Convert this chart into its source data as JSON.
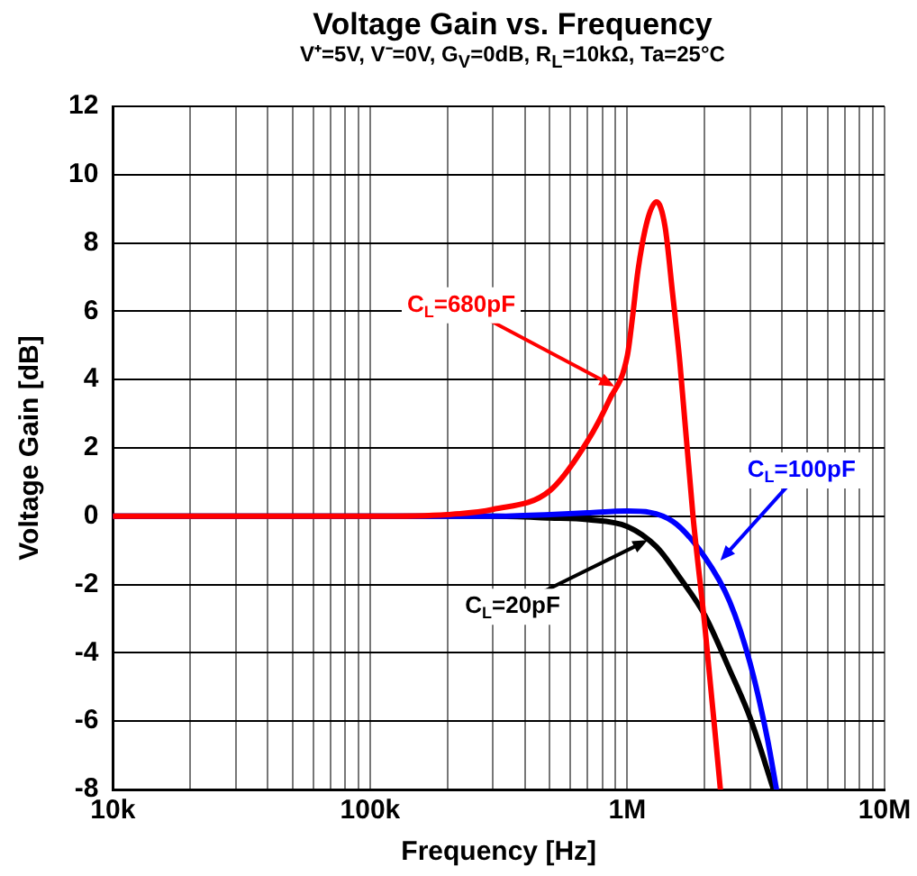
{
  "chart_data": {
    "type": "line",
    "title": "Voltage Gain vs. Frequency",
    "subtitle": "V⁺=5V, V⁻=0V, G$_{V}$=0dB, R$_{L}$=10kΩ, Ta=25°C",
    "xlabel": "Frequency [Hz]",
    "ylabel": "Voltage Gain [dB]",
    "log": "x",
    "grid": true,
    "legend": false,
    "marker": "none",
    "line_style": "solid",
    "xlim": [
      10000,
      10000000
    ],
    "xticks": [
      {
        "value": 10000,
        "label": "10k"
      },
      {
        "value": 100000,
        "label": "100k"
      },
      {
        "value": 1000000,
        "label": "1M"
      },
      {
        "value": 10000000,
        "label": "10M"
      }
    ],
    "ylim": [
      -8,
      12
    ],
    "yticks": [
      -8,
      -6,
      -4,
      -2,
      0,
      2,
      4,
      6,
      8,
      10,
      12
    ],
    "series": [
      {
        "color": "#ff0000",
        "x": [
          10000,
          100000,
          200000,
          300000,
          500000,
          700000,
          850000,
          1000000,
          1050000,
          1100000,
          1200000,
          1300000,
          1400000,
          1500000,
          1600000,
          1800000,
          2000000,
          2300000
        ],
        "values": [
          0,
          0,
          0.05,
          0.2,
          0.75,
          2.2,
          3.4,
          4.7,
          5.9,
          7.2,
          8.7,
          9.2,
          8.5,
          6.5,
          4.5,
          0,
          -3.2,
          -8
        ]
      },
      {
        "color": "#0000ff",
        "x": [
          10000,
          100000,
          300000,
          500000,
          700000,
          1000000,
          1500000,
          2000000,
          2500000,
          3000000,
          3500000,
          3800000
        ],
        "values": [
          0,
          0,
          0,
          0.05,
          0.1,
          0.15,
          -0.15,
          -1.2,
          -2.5,
          -4.3,
          -6.5,
          -8
        ]
      },
      {
        "color": "#000000",
        "x": [
          10000,
          100000,
          300000,
          500000,
          700000,
          1000000,
          1300000,
          1600000,
          2000000,
          2500000,
          3000000,
          3700000
        ],
        "values": [
          0,
          0,
          0,
          -0.05,
          -0.1,
          -0.3,
          -0.9,
          -1.8,
          -2.9,
          -4.5,
          -5.9,
          -8
        ]
      }
    ],
    "annotations": [
      {
        "text": "C$_{L}$=680pF",
        "x": 890000,
        "y": 3.8
      },
      {
        "text": "C$_{L}$=100pF",
        "x": 2300000,
        "y": -1.3
      },
      {
        "text": "C$_{L}$=20pF",
        "x": 1200000,
        "y": -0.7
      }
    ]
  }
}
